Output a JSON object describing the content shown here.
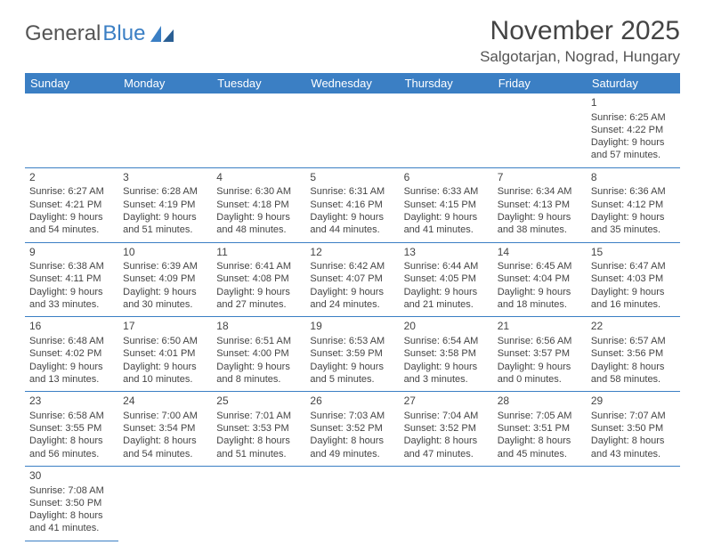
{
  "logo": {
    "text1": "General",
    "text2": "Blue"
  },
  "title": "November 2025",
  "location": "Salgotarjan, Nograd, Hungary",
  "colors": {
    "header_bg": "#3b7fc4",
    "header_fg": "#ffffff",
    "row_divider": "#3b7fc4",
    "cell_border": "#b0b0b0",
    "text": "#444444"
  },
  "weekdays": [
    "Sunday",
    "Monday",
    "Tuesday",
    "Wednesday",
    "Thursday",
    "Friday",
    "Saturday"
  ],
  "grid": [
    [
      null,
      null,
      null,
      null,
      null,
      null,
      {
        "day": "1",
        "sunrise": "6:25 AM",
        "sunset": "4:22 PM",
        "daylight1": "Daylight: 9 hours",
        "daylight2": "and 57 minutes."
      }
    ],
    [
      {
        "day": "2",
        "sunrise": "6:27 AM",
        "sunset": "4:21 PM",
        "daylight1": "Daylight: 9 hours",
        "daylight2": "and 54 minutes."
      },
      {
        "day": "3",
        "sunrise": "6:28 AM",
        "sunset": "4:19 PM",
        "daylight1": "Daylight: 9 hours",
        "daylight2": "and 51 minutes."
      },
      {
        "day": "4",
        "sunrise": "6:30 AM",
        "sunset": "4:18 PM",
        "daylight1": "Daylight: 9 hours",
        "daylight2": "and 48 minutes."
      },
      {
        "day": "5",
        "sunrise": "6:31 AM",
        "sunset": "4:16 PM",
        "daylight1": "Daylight: 9 hours",
        "daylight2": "and 44 minutes."
      },
      {
        "day": "6",
        "sunrise": "6:33 AM",
        "sunset": "4:15 PM",
        "daylight1": "Daylight: 9 hours",
        "daylight2": "and 41 minutes."
      },
      {
        "day": "7",
        "sunrise": "6:34 AM",
        "sunset": "4:13 PM",
        "daylight1": "Daylight: 9 hours",
        "daylight2": "and 38 minutes."
      },
      {
        "day": "8",
        "sunrise": "6:36 AM",
        "sunset": "4:12 PM",
        "daylight1": "Daylight: 9 hours",
        "daylight2": "and 35 minutes."
      }
    ],
    [
      {
        "day": "9",
        "sunrise": "6:38 AM",
        "sunset": "4:11 PM",
        "daylight1": "Daylight: 9 hours",
        "daylight2": "and 33 minutes."
      },
      {
        "day": "10",
        "sunrise": "6:39 AM",
        "sunset": "4:09 PM",
        "daylight1": "Daylight: 9 hours",
        "daylight2": "and 30 minutes."
      },
      {
        "day": "11",
        "sunrise": "6:41 AM",
        "sunset": "4:08 PM",
        "daylight1": "Daylight: 9 hours",
        "daylight2": "and 27 minutes."
      },
      {
        "day": "12",
        "sunrise": "6:42 AM",
        "sunset": "4:07 PM",
        "daylight1": "Daylight: 9 hours",
        "daylight2": "and 24 minutes."
      },
      {
        "day": "13",
        "sunrise": "6:44 AM",
        "sunset": "4:05 PM",
        "daylight1": "Daylight: 9 hours",
        "daylight2": "and 21 minutes."
      },
      {
        "day": "14",
        "sunrise": "6:45 AM",
        "sunset": "4:04 PM",
        "daylight1": "Daylight: 9 hours",
        "daylight2": "and 18 minutes."
      },
      {
        "day": "15",
        "sunrise": "6:47 AM",
        "sunset": "4:03 PM",
        "daylight1": "Daylight: 9 hours",
        "daylight2": "and 16 minutes."
      }
    ],
    [
      {
        "day": "16",
        "sunrise": "6:48 AM",
        "sunset": "4:02 PM",
        "daylight1": "Daylight: 9 hours",
        "daylight2": "and 13 minutes."
      },
      {
        "day": "17",
        "sunrise": "6:50 AM",
        "sunset": "4:01 PM",
        "daylight1": "Daylight: 9 hours",
        "daylight2": "and 10 minutes."
      },
      {
        "day": "18",
        "sunrise": "6:51 AM",
        "sunset": "4:00 PM",
        "daylight1": "Daylight: 9 hours",
        "daylight2": "and 8 minutes."
      },
      {
        "day": "19",
        "sunrise": "6:53 AM",
        "sunset": "3:59 PM",
        "daylight1": "Daylight: 9 hours",
        "daylight2": "and 5 minutes."
      },
      {
        "day": "20",
        "sunrise": "6:54 AM",
        "sunset": "3:58 PM",
        "daylight1": "Daylight: 9 hours",
        "daylight2": "and 3 minutes."
      },
      {
        "day": "21",
        "sunrise": "6:56 AM",
        "sunset": "3:57 PM",
        "daylight1": "Daylight: 9 hours",
        "daylight2": "and 0 minutes."
      },
      {
        "day": "22",
        "sunrise": "6:57 AM",
        "sunset": "3:56 PM",
        "daylight1": "Daylight: 8 hours",
        "daylight2": "and 58 minutes."
      }
    ],
    [
      {
        "day": "23",
        "sunrise": "6:58 AM",
        "sunset": "3:55 PM",
        "daylight1": "Daylight: 8 hours",
        "daylight2": "and 56 minutes."
      },
      {
        "day": "24",
        "sunrise": "7:00 AM",
        "sunset": "3:54 PM",
        "daylight1": "Daylight: 8 hours",
        "daylight2": "and 54 minutes."
      },
      {
        "day": "25",
        "sunrise": "7:01 AM",
        "sunset": "3:53 PM",
        "daylight1": "Daylight: 8 hours",
        "daylight2": "and 51 minutes."
      },
      {
        "day": "26",
        "sunrise": "7:03 AM",
        "sunset": "3:52 PM",
        "daylight1": "Daylight: 8 hours",
        "daylight2": "and 49 minutes."
      },
      {
        "day": "27",
        "sunrise": "7:04 AM",
        "sunset": "3:52 PM",
        "daylight1": "Daylight: 8 hours",
        "daylight2": "and 47 minutes."
      },
      {
        "day": "28",
        "sunrise": "7:05 AM",
        "sunset": "3:51 PM",
        "daylight1": "Daylight: 8 hours",
        "daylight2": "and 45 minutes."
      },
      {
        "day": "29",
        "sunrise": "7:07 AM",
        "sunset": "3:50 PM",
        "daylight1": "Daylight: 8 hours",
        "daylight2": "and 43 minutes."
      }
    ],
    [
      {
        "day": "30",
        "sunrise": "7:08 AM",
        "sunset": "3:50 PM",
        "daylight1": "Daylight: 8 hours",
        "daylight2": "and 41 minutes."
      },
      null,
      null,
      null,
      null,
      null,
      null
    ]
  ]
}
